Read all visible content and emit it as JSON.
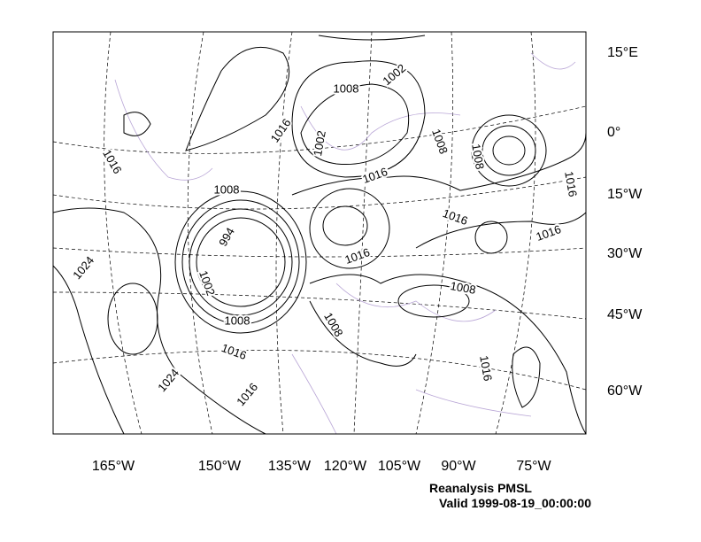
{
  "map": {
    "right_labels": [
      "15°E",
      "0°",
      "15°W",
      "30°W",
      "45°W",
      "60°W"
    ],
    "bottom_labels": [
      "165°W",
      "150°W",
      "135°W",
      "120°W",
      "105°W",
      "90°W",
      "75°W"
    ],
    "contour_labels": [
      1008,
      1002,
      1016,
      1002,
      1008,
      1008,
      1016,
      1008,
      1016,
      1016,
      994,
      1016,
      1016,
      1016,
      1024,
      1002,
      1008,
      1008,
      1008,
      1016,
      1016,
      1024,
      1016
    ],
    "caption": [
      "Reanalysis PMSL",
      "Valid 1999-08-19_00:00:00"
    ]
  }
}
